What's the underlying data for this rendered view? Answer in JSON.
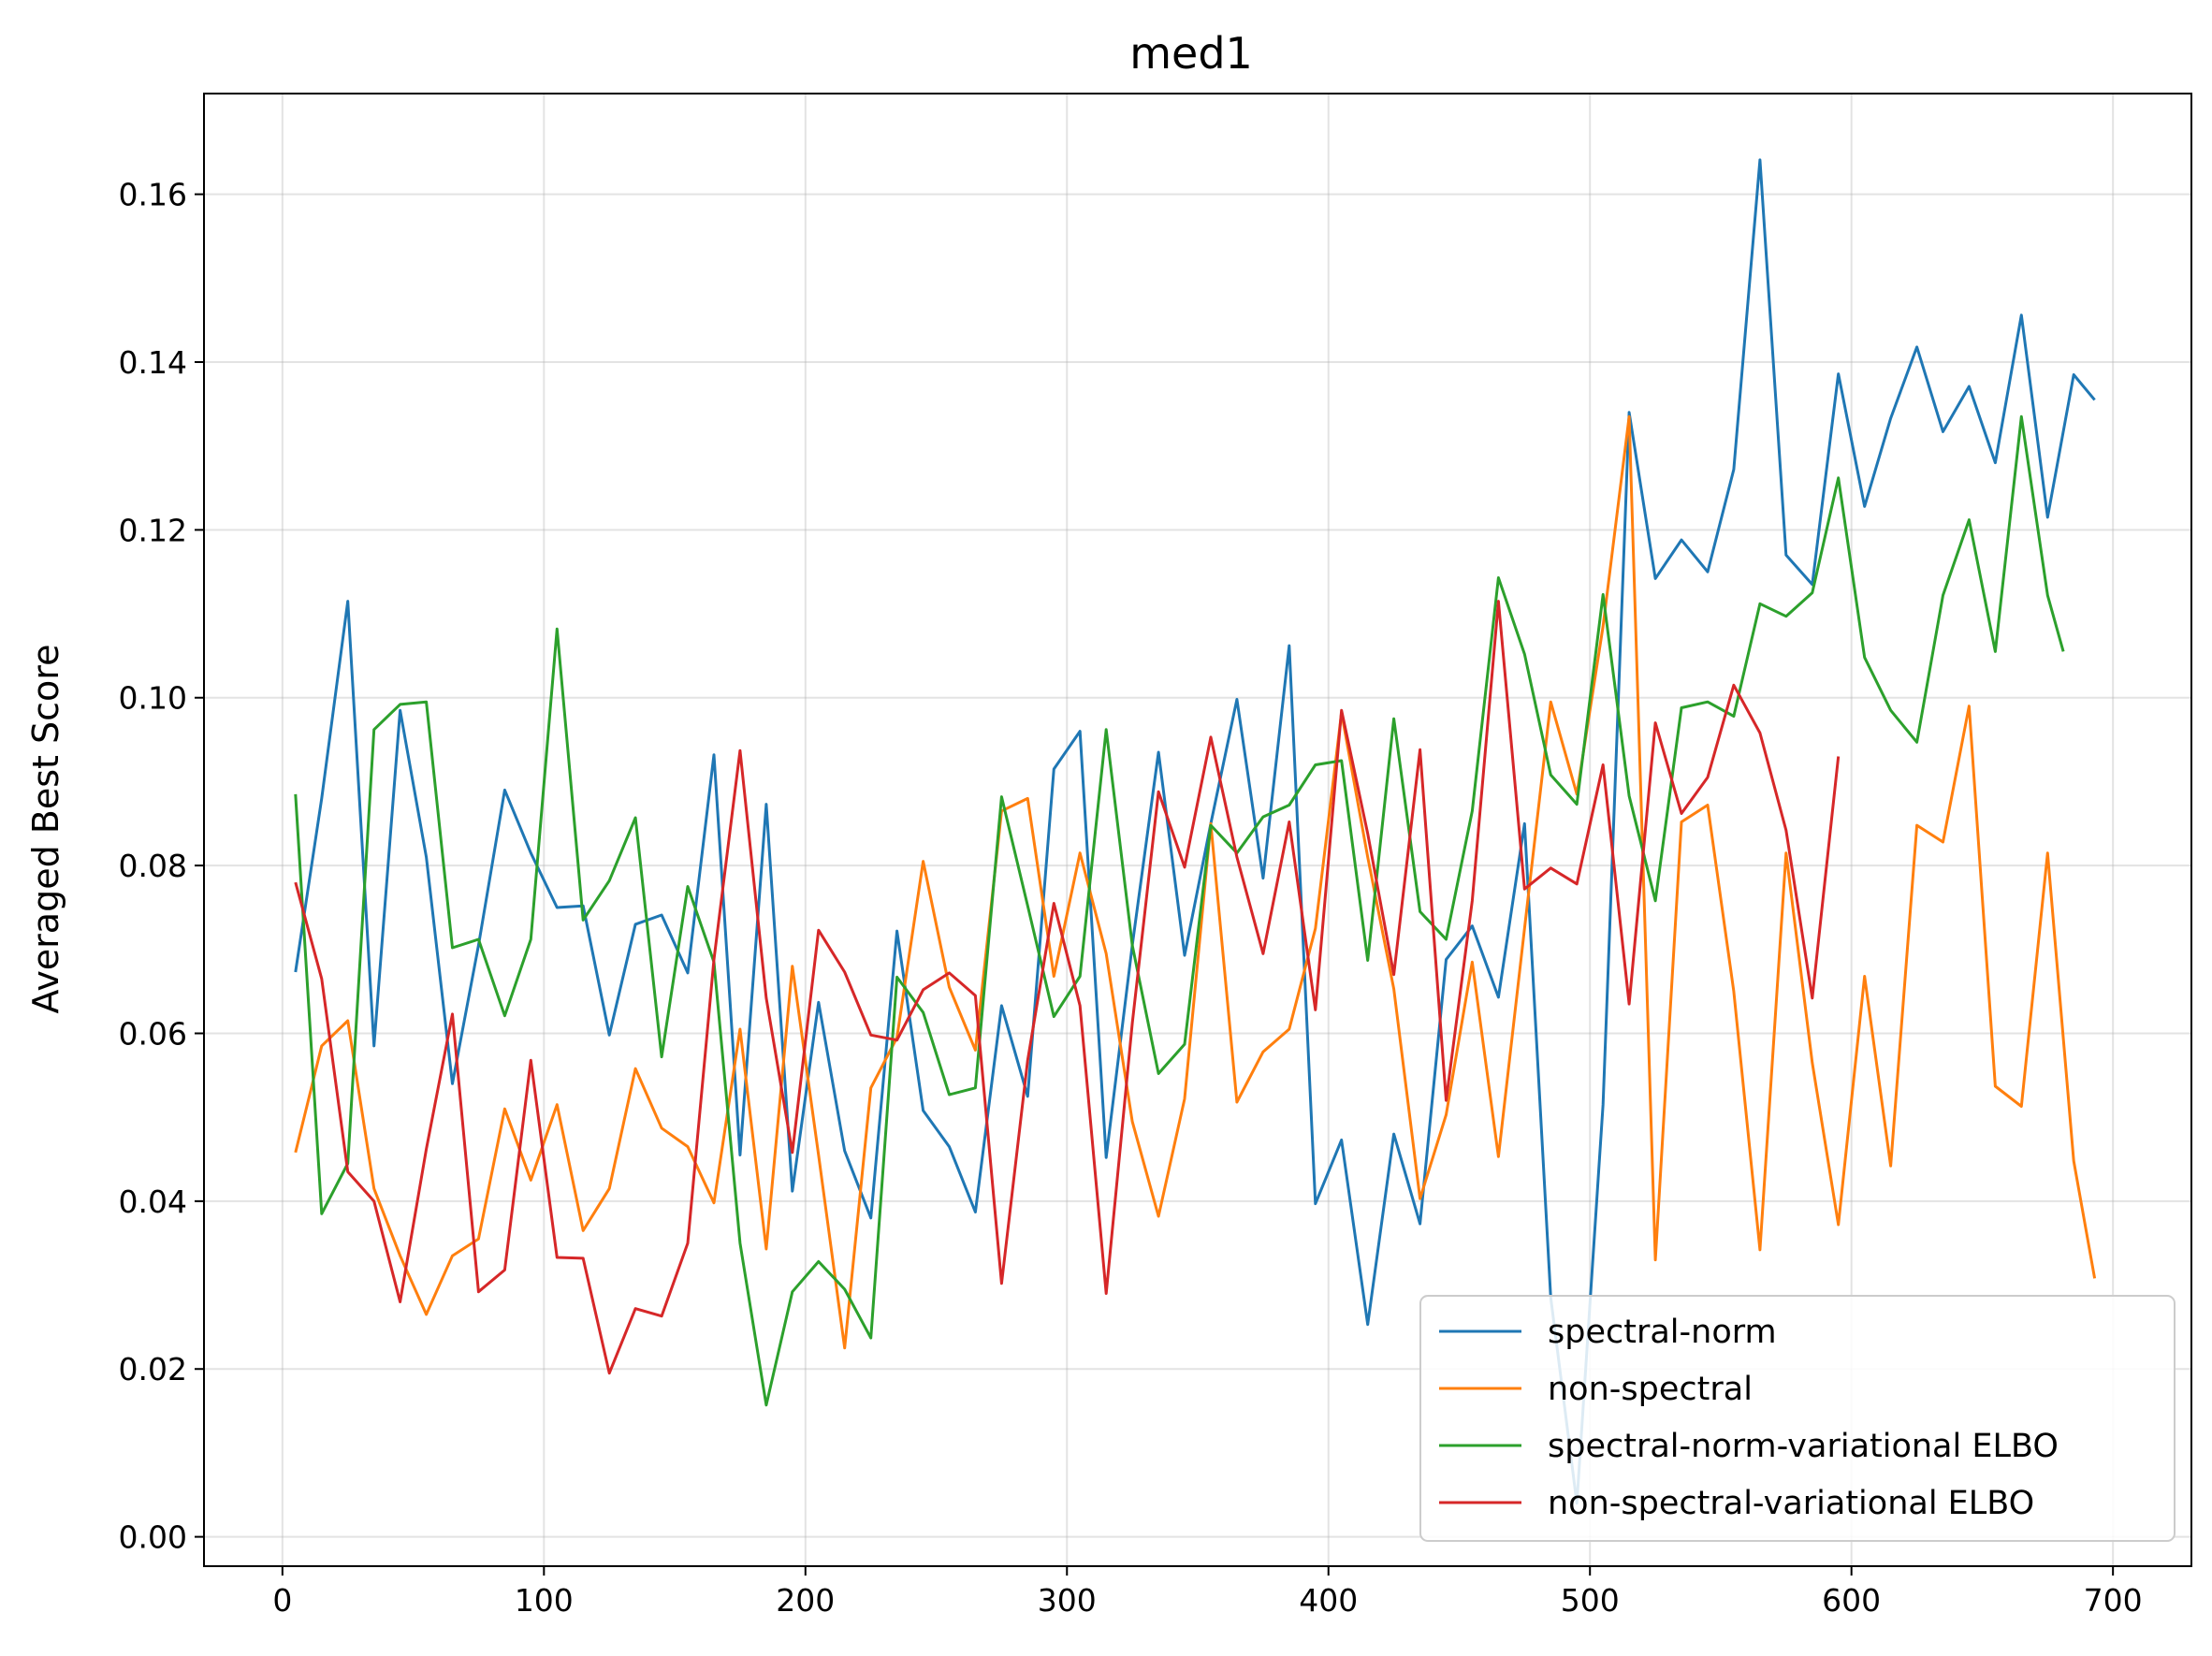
{
  "chart_data": {
    "type": "line",
    "title": "med1",
    "xlabel": "",
    "ylabel": "Averaged Best Score",
    "xlim": [
      -30,
      730
    ],
    "ylim": [
      -0.0035,
      0.172
    ],
    "xticks": [
      0,
      100,
      200,
      300,
      400,
      500,
      600,
      700
    ],
    "yticks": [
      0.0,
      0.02,
      0.04,
      0.06,
      0.08,
      0.1,
      0.12,
      0.14,
      0.16
    ],
    "xtick_labels": [
      "0",
      "100",
      "200",
      "300",
      "400",
      "500",
      "600",
      "700"
    ],
    "ytick_labels": [
      "0.00",
      "0.02",
      "0.04",
      "0.06",
      "0.08",
      "0.10",
      "0.12",
      "0.14",
      "0.16"
    ],
    "grid": true,
    "legend_position": "lower-right",
    "series": [
      {
        "name": "spectral-norm",
        "color": "#1f77b4",
        "x": [
          5,
          15,
          25,
          35,
          45,
          55,
          65,
          75,
          85,
          95,
          105,
          115,
          125,
          135,
          145,
          155,
          165,
          175,
          185,
          195,
          205,
          215,
          225,
          235,
          245,
          255,
          265,
          275,
          285,
          295,
          305,
          315,
          325,
          335,
          345,
          355,
          365,
          375,
          385,
          395,
          405,
          415,
          425,
          435,
          445,
          455,
          465,
          475,
          485,
          495,
          505,
          515,
          525,
          535,
          545,
          555,
          565,
          575,
          585,
          595,
          605,
          615,
          625,
          635,
          645,
          655,
          665,
          675,
          685,
          693
        ],
        "y": [
          0.0673,
          0.088,
          0.1115,
          0.0585,
          0.0985,
          0.081,
          0.054,
          0.0705,
          0.089,
          0.0815,
          0.075,
          0.0752,
          0.0598,
          0.073,
          0.0741,
          0.0672,
          0.0932,
          0.0455,
          0.0873,
          0.0412,
          0.0637,
          0.046,
          0.038,
          0.0722,
          0.0508,
          0.0465,
          0.0387,
          0.0633,
          0.0525,
          0.0915,
          0.096,
          0.0452,
          0.0705,
          0.0935,
          0.0693,
          0.085,
          0.0998,
          0.0785,
          0.1062,
          0.0397,
          0.0473,
          0.0253,
          0.048,
          0.0373,
          0.0688,
          0.0728,
          0.0643,
          0.085,
          0.0285,
          0.004,
          0.0515,
          0.134,
          0.1142,
          0.1188,
          0.115,
          0.1272,
          0.1641,
          0.117,
          0.1135,
          0.1386,
          0.1228,
          0.1333,
          0.1418,
          0.1317,
          0.1371,
          0.128,
          0.1456,
          0.1215,
          0.1385,
          0.1355
        ]
      },
      {
        "name": "non-spectral",
        "color": "#ff7f0e",
        "x": [
          5,
          15,
          25,
          35,
          45,
          55,
          65,
          75,
          85,
          95,
          105,
          115,
          125,
          135,
          145,
          155,
          165,
          175,
          185,
          195,
          205,
          215,
          225,
          235,
          245,
          255,
          265,
          275,
          285,
          295,
          305,
          315,
          325,
          335,
          345,
          355,
          365,
          375,
          385,
          395,
          405,
          415,
          425,
          435,
          445,
          455,
          465,
          475,
          485,
          495,
          505,
          515,
          525,
          535,
          545,
          555,
          565,
          575,
          585,
          595,
          605,
          615,
          625,
          635,
          645,
          655,
          665,
          675,
          685,
          693
        ],
        "y": [
          0.0458,
          0.0585,
          0.0615,
          0.0415,
          0.0335,
          0.0265,
          0.0335,
          0.0355,
          0.051,
          0.0425,
          0.0515,
          0.0365,
          0.0415,
          0.0558,
          0.0487,
          0.0465,
          0.0398,
          0.0605,
          0.0343,
          0.068,
          0.0455,
          0.0225,
          0.0535,
          0.0595,
          0.0805,
          0.0655,
          0.058,
          0.0865,
          0.088,
          0.0668,
          0.0815,
          0.0695,
          0.0495,
          0.0382,
          0.0522,
          0.085,
          0.0518,
          0.0578,
          0.0605,
          0.0725,
          0.0982,
          0.081,
          0.0653,
          0.0403,
          0.0503,
          0.0685,
          0.0453,
          0.0725,
          0.0995,
          0.0885,
          0.1085,
          0.1335,
          0.033,
          0.0852,
          0.0872,
          0.065,
          0.0342,
          0.0815,
          0.0565,
          0.0372,
          0.0668,
          0.0442,
          0.0848,
          0.0828,
          0.099,
          0.0537,
          0.0513,
          0.0815,
          0.0448,
          0.0308
        ]
      },
      {
        "name": "spectral-norm-variational ELBO",
        "color": "#2ca02c",
        "x": [
          5,
          15,
          25,
          35,
          45,
          55,
          65,
          75,
          85,
          95,
          105,
          115,
          125,
          135,
          145,
          155,
          165,
          175,
          185,
          195,
          205,
          215,
          225,
          235,
          245,
          255,
          265,
          275,
          285,
          295,
          305,
          315,
          325,
          335,
          345,
          355,
          365,
          375,
          385,
          395,
          405,
          415,
          425,
          435,
          445,
          455,
          465,
          475,
          485,
          495,
          505,
          515,
          525,
          535,
          545,
          555,
          565,
          575,
          585,
          595,
          605,
          615,
          625,
          635,
          645,
          655,
          665,
          675,
          681
        ],
        "y": [
          0.0885,
          0.0385,
          0.0445,
          0.0962,
          0.0992,
          0.0995,
          0.0702,
          0.0712,
          0.0621,
          0.0712,
          0.1082,
          0.0735,
          0.0782,
          0.0857,
          0.0572,
          0.0775,
          0.0685,
          0.035,
          0.0157,
          0.0292,
          0.0328,
          0.0295,
          0.0237,
          0.0667,
          0.0625,
          0.0527,
          0.0535,
          0.0882,
          0.0752,
          0.062,
          0.0668,
          0.0962,
          0.0705,
          0.0552,
          0.0587,
          0.0848,
          0.0815,
          0.0858,
          0.0872,
          0.092,
          0.0925,
          0.0687,
          0.0975,
          0.0745,
          0.0712,
          0.0865,
          0.1143,
          0.1052,
          0.0908,
          0.0873,
          0.1123,
          0.0883,
          0.0758,
          0.0988,
          0.0995,
          0.0978,
          0.1112,
          0.1097,
          0.1125,
          0.1262,
          0.1048,
          0.0985,
          0.0947,
          0.1122,
          0.1212,
          0.1055,
          0.1335,
          0.1122,
          0.1055
        ]
      },
      {
        "name": "non-spectral-variational ELBO",
        "color": "#d62728",
        "x": [
          5,
          15,
          25,
          35,
          45,
          55,
          65,
          75,
          85,
          95,
          105,
          115,
          125,
          135,
          145,
          155,
          165,
          175,
          185,
          195,
          205,
          215,
          225,
          235,
          245,
          255,
          265,
          275,
          285,
          295,
          305,
          315,
          325,
          335,
          345,
          355,
          365,
          375,
          385,
          395,
          405,
          415,
          425,
          435,
          445,
          455,
          465,
          475,
          485,
          495,
          505,
          515,
          525,
          535,
          545,
          555,
          565,
          575,
          585,
          595
        ],
        "y": [
          0.078,
          0.0665,
          0.0435,
          0.04,
          0.028,
          0.0462,
          0.0623,
          0.0292,
          0.0318,
          0.0568,
          0.0333,
          0.0332,
          0.0195,
          0.0272,
          0.0263,
          0.035,
          0.0688,
          0.0937,
          0.0642,
          0.0458,
          0.0723,
          0.0673,
          0.0598,
          0.0592,
          0.0652,
          0.0672,
          0.0645,
          0.0302,
          0.0568,
          0.0755,
          0.0633,
          0.029,
          0.0612,
          0.0888,
          0.0798,
          0.0953,
          0.081,
          0.0695,
          0.0852,
          0.0628,
          0.0985,
          0.0838,
          0.067,
          0.0938,
          0.052,
          0.0758,
          0.1115,
          0.0772,
          0.0797,
          0.0778,
          0.092,
          0.0635,
          0.097,
          0.0862,
          0.0905,
          0.1015,
          0.0958,
          0.0842,
          0.0642,
          0.093
        ]
      }
    ]
  }
}
